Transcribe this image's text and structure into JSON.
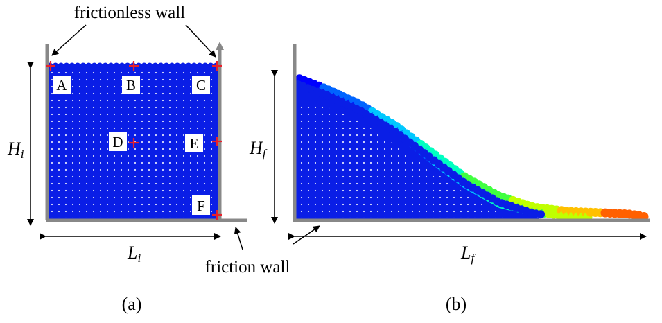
{
  "labels": {
    "frictionless_wall": "frictionless wall",
    "friction_wall": "friction wall",
    "panel_a": "(a)",
    "panel_b": "(b)",
    "hi_main": "H",
    "hi_sub": "i",
    "li_main": "L",
    "li_sub": "i",
    "hf_main": "H",
    "hf_sub": "f",
    "lf_main": "L",
    "lf_sub": "f"
  },
  "points": [
    {
      "label": "A"
    },
    {
      "label": "B"
    },
    {
      "label": "C"
    },
    {
      "label": "D"
    },
    {
      "label": "E"
    },
    {
      "label": "F"
    }
  ],
  "colors": {
    "particle_blue": "#0a1ee6",
    "wall_gray": "#888888",
    "marker_red": "#e8202a",
    "colormap": [
      "#0000ff",
      "#0064ff",
      "#00c8ff",
      "#00ffc0",
      "#40ff40",
      "#c0ff00",
      "#ffc000",
      "#ff6000"
    ]
  }
}
